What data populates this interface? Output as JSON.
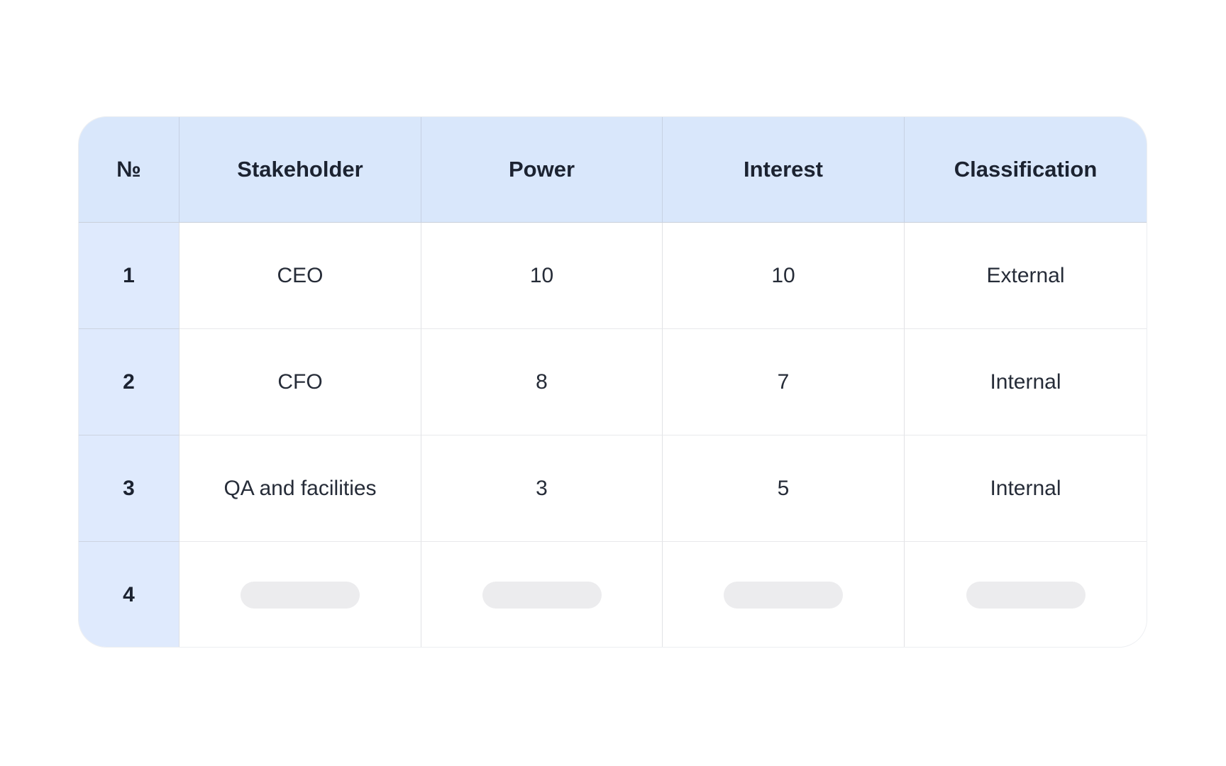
{
  "table": {
    "columns": [
      "№",
      "Stakeholder",
      "Power",
      "Interest",
      "Classification"
    ],
    "rows": [
      {
        "num": "1",
        "stakeholder": "CEO",
        "power": "10",
        "interest": "10",
        "classification": "External"
      },
      {
        "num": "2",
        "stakeholder": "CFO",
        "power": "8",
        "interest": "7",
        "classification": "Internal"
      },
      {
        "num": "3",
        "stakeholder": "QA and facilities",
        "power": "3",
        "interest": "5",
        "classification": "Internal"
      },
      {
        "num": "4",
        "stakeholder": "",
        "power": "",
        "interest": "",
        "classification": "",
        "placeholder": true
      }
    ],
    "colors": {
      "header_bg": "#d9e7fb",
      "index_column_bg": "#dfeafd",
      "header_text": "#1c2331",
      "body_text": "#262c38",
      "row_border": "#e8e9eb",
      "column_border": "#e1e2e5",
      "header_divider": "#c9cfda",
      "card_border": "#eceef1",
      "placeholder_pill": "#ececee",
      "page_background": "#ffffff"
    }
  },
  "chart_data": {
    "type": "table",
    "title": "",
    "columns": [
      "№",
      "Stakeholder",
      "Power",
      "Interest",
      "Classification"
    ],
    "rows": [
      [
        "1",
        "CEO",
        10,
        10,
        "External"
      ],
      [
        "2",
        "CFO",
        8,
        7,
        "Internal"
      ],
      [
        "3",
        "QA and facilities",
        3,
        5,
        "Internal"
      ],
      [
        "4",
        "",
        "",
        "",
        ""
      ]
    ]
  }
}
